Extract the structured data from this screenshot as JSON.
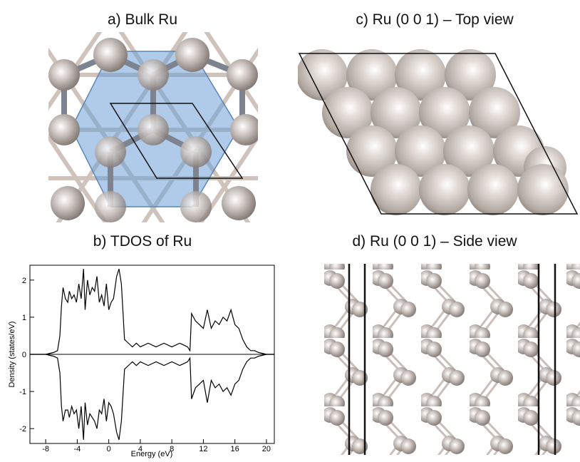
{
  "panels": [
    {
      "title": "a) Bulk Ru"
    },
    {
      "title": "c) Ru (0 0 1) – Top view"
    },
    {
      "title": "b) TDOS of Ru"
    },
    {
      "title": "d) Ru (0 0 1) – Side view"
    }
  ],
  "chart_data": {
    "type": "line",
    "xlabel": "Energy (eV)",
    "ylabel": "Density (states/eV)",
    "xlim": [
      -10,
      21
    ],
    "ylim": [
      -2.4,
      2.4
    ],
    "xticks": [
      -8,
      -4,
      0,
      4,
      8,
      12,
      16,
      20
    ],
    "yticks": [
      -2,
      -1,
      0,
      1,
      2
    ],
    "x": [
      -10,
      -8,
      -7,
      -6.5,
      -6.2,
      -6,
      -5.8,
      -5.5,
      -5.2,
      -5,
      -4.7,
      -4.4,
      -4.1,
      -3.8,
      -3.5,
      -3.2,
      -3,
      -2.7,
      -2.4,
      -2.1,
      -1.8,
      -1.5,
      -1.2,
      -0.9,
      -0.6,
      -0.3,
      0,
      0.3,
      0.6,
      1,
      1.3,
      1.6,
      2,
      2.5,
      3,
      3.5,
      4,
      5,
      6,
      7,
      8,
      9,
      10,
      10.3,
      10.5,
      11,
      11.5,
      12,
      12.5,
      13,
      13.5,
      14,
      14.5,
      15,
      15.5,
      16,
      16.5,
      17,
      17.5,
      18,
      18.5,
      19,
      20,
      21
    ],
    "series": [
      {
        "color": "#000000",
        "values": [
          0,
          0,
          0.05,
          0.1,
          0.5,
          1.3,
          1.8,
          1.5,
          1.4,
          1.7,
          1.5,
          1.6,
          1.4,
          1.9,
          1.5,
          2.3,
          1.2,
          2.0,
          1.6,
          1.8,
          1.7,
          2.1,
          1.4,
          1.6,
          1.3,
          1.9,
          1.2,
          1.4,
          1.5,
          2.1,
          2.3,
          1.9,
          0.4,
          0.3,
          0.2,
          0.3,
          0.2,
          0.3,
          0.2,
          0.3,
          0.2,
          0.3,
          0.2,
          0.1,
          1.1,
          0.9,
          0.8,
          0.7,
          1.2,
          0.7,
          0.9,
          0.8,
          1.0,
          0.9,
          1.2,
          0.8,
          0.7,
          0.4,
          0.2,
          0.1,
          0.1,
          0.05,
          0,
          0
        ]
      },
      {
        "color": "#000000",
        "values": [
          0,
          0,
          -0.05,
          -0.1,
          -0.5,
          -1.4,
          -1.8,
          -1.5,
          -1.5,
          -1.7,
          -1.4,
          -1.6,
          -1.5,
          -2.0,
          -1.4,
          -2.3,
          -1.3,
          -1.9,
          -1.6,
          -1.7,
          -1.8,
          -2.0,
          -1.5,
          -1.6,
          -1.2,
          -1.8,
          -1.3,
          -1.4,
          -1.6,
          -2.1,
          -2.3,
          -1.8,
          -0.4,
          -0.3,
          -0.2,
          -0.3,
          -0.2,
          -0.3,
          -0.2,
          -0.3,
          -0.2,
          -0.3,
          -0.2,
          -0.1,
          -1.2,
          -0.9,
          -0.8,
          -0.7,
          -1.3,
          -0.7,
          -0.9,
          -0.8,
          -1.0,
          -0.9,
          -1.1,
          -0.8,
          -0.7,
          -0.4,
          -0.2,
          -0.1,
          -0.1,
          -0.05,
          0,
          0
        ]
      }
    ]
  }
}
